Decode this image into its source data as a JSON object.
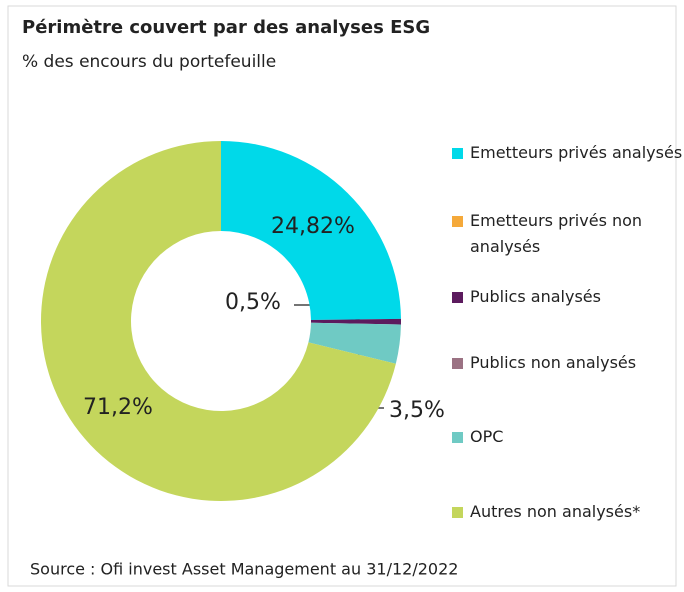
{
  "chart_data": {
    "type": "donut",
    "title": "Périmètre couvert par des analyses ESG",
    "subtitle": "% des encours du portefeuille",
    "categories": [
      "Emetteurs privés analysés",
      "Emetteurs privés non analysés",
      "Publics analysés",
      "Publics non analysés",
      "OPC",
      "Autres non analysés*"
    ],
    "values": [
      24.82,
      0,
      0.5,
      0,
      3.5,
      71.2
    ],
    "value_labels": [
      "24,82%",
      null,
      "0,5%",
      null,
      "3,5%",
      "71,2%"
    ],
    "colors": [
      "#00d9e9",
      "#f5a93a",
      "#5c1b5e",
      "#9b7283",
      "#6fcac4",
      "#c4d65c"
    ],
    "source": "Source : Ofi invest Asset Management au 31/12/2022"
  }
}
